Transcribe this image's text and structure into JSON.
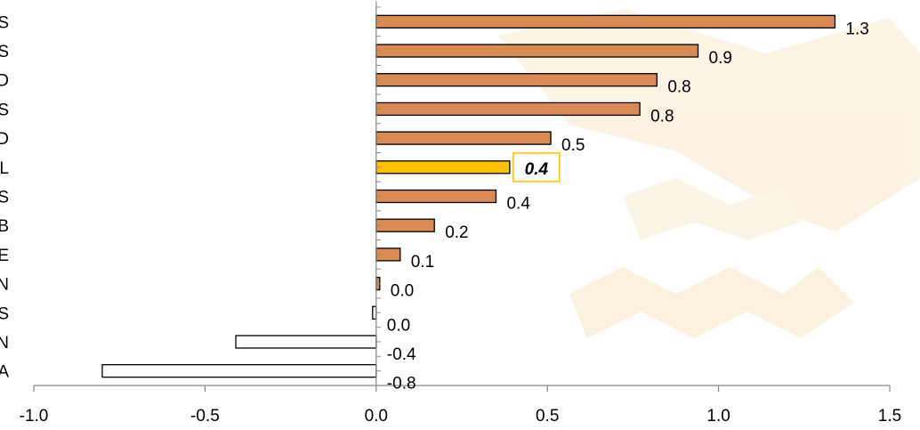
{
  "chart_data": {
    "type": "bar",
    "orientation": "horizontal",
    "title": "",
    "xlabel": "",
    "ylabel": "",
    "xlim": [
      -1.0,
      1.5
    ],
    "x_ticks": [
      -1.0,
      -0.5,
      0.0,
      0.5,
      1.0,
      1.5
    ],
    "x_tick_labels": [
      "-1.0",
      "-0.5",
      "0.0",
      "0.5",
      "1.0",
      "1.5"
    ],
    "grid": false,
    "categories": [
      "S",
      "S",
      "D",
      "S",
      "D",
      "L",
      "S",
      "B",
      "E",
      "N",
      "S",
      "N",
      "A"
    ],
    "values": [
      1.34,
      0.94,
      0.82,
      0.77,
      0.51,
      0.39,
      0.35,
      0.17,
      0.07,
      0.0,
      -0.01,
      -0.41,
      -0.8
    ],
    "value_labels": [
      "1.3",
      "0.9",
      "0.8",
      "0.8",
      "0.5",
      "0.4",
      "0.4",
      "0.2",
      "0.1",
      "0.0",
      "0.0",
      "-0.4",
      "-0.8"
    ],
    "highlight_index": 5,
    "colors": {
      "positive": "#d98b53",
      "negative": "#ffffff",
      "highlight": "#ffc000",
      "bar_border": "#000000",
      "watermark": "#e8c275"
    }
  }
}
